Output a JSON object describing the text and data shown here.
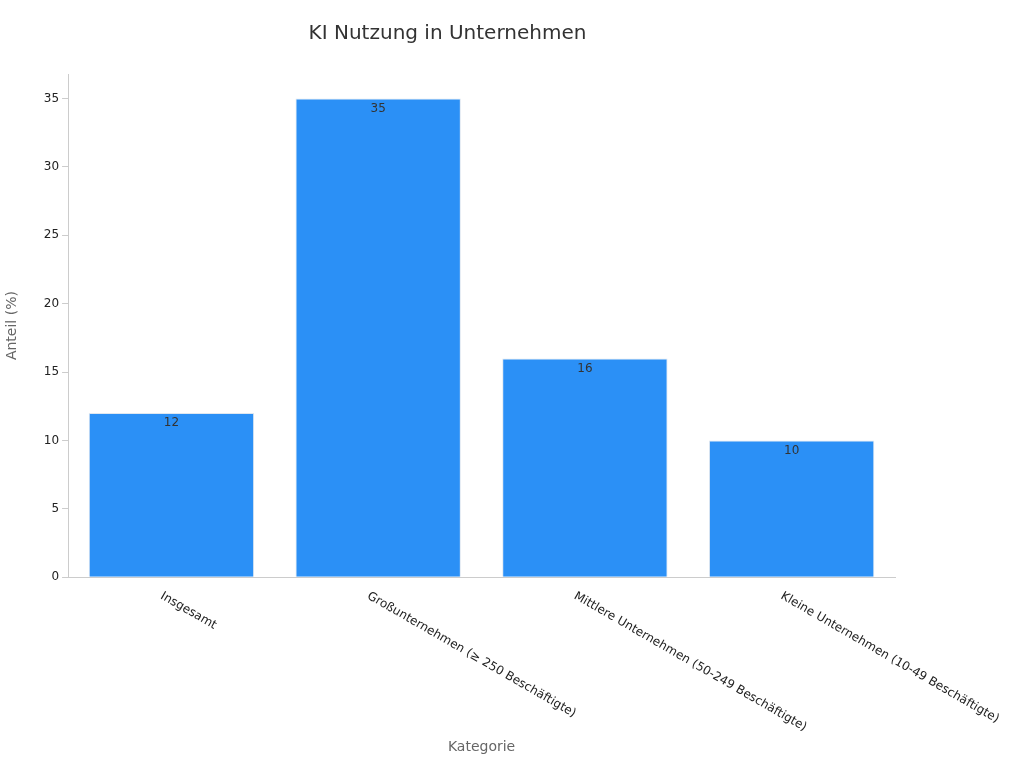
{
  "chart_data": {
    "type": "bar",
    "title": "KI Nutzung in Unternehmen",
    "xlabel": "Kategorie",
    "ylabel": "Anteil (%)",
    "categories": [
      "Insgesamt",
      "Großunternehmen (≥ 250 Beschäftigte)",
      "Mittlere Unternehmen (50-249 Beschäftigte)",
      "Kleine Unternehmen (10-49 Beschäftigte)"
    ],
    "values": [
      12,
      35,
      16,
      10
    ],
    "color": "#2b90f6",
    "ylim": [
      0,
      36.8
    ],
    "yticks": [
      0,
      5,
      10,
      15,
      20,
      25,
      30,
      35
    ],
    "grid": false,
    "legend": false,
    "data_labels": true
  }
}
